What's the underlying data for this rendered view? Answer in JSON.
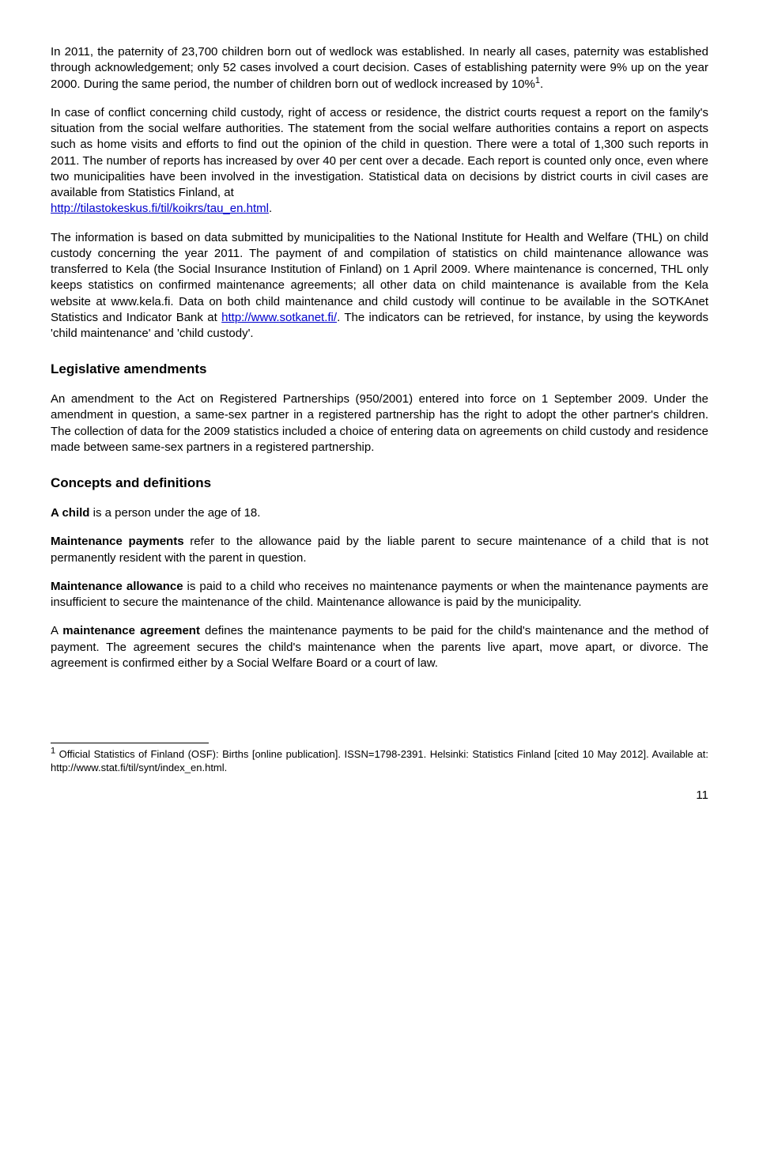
{
  "para1": "In 2011, the paternity of 23,700 children born out of wedlock was established. In nearly all cases, paternity was established through acknowledgement; only 52 cases involved a court decision. Cases of establishing paternity were 9% up on the year 2000. During the same period, the number of children born out of wedlock increased by 10%",
  "para1_sup": "1",
  "para1_end": ".",
  "para2_a": "In case of conflict concerning child custody, right of access or residence, the district courts request a report on the family's situation from the social welfare authorities. The statement from the social welfare authorities contains a report on aspects such as home visits and efforts to find out the opinion of the child in question. There were a total of 1,300 such reports in 2011. The number of reports has increased by over 40 per cent over a decade. Each report is counted only once, even where two municipalities have been involved in the investigation. Statistical data on decisions by district courts in civil cases are available from Statistics Finland, at",
  "para2_link": "http://tilastokeskus.fi/til/koikrs/tau_en.html",
  "para2_b": ".",
  "para3_a": "The information is based on data submitted by municipalities to the National Institute for Health and Welfare (THL) on child custody concerning the year 2011. The payment of and compilation of statistics on child maintenance allowance was transferred to Kela (the Social Insurance Institution of Finland) on 1 April 2009. Where maintenance is concerned, THL only keeps statistics on confirmed maintenance agreements; all other data on child maintenance is available from the Kela website at www.kela.fi. Data on both child maintenance and child custody will continue to be available in the SOTKAnet Statistics and Indicator Bank at ",
  "para3_link": "http://www.sotkanet.fi/",
  "para3_b": ". The indicators can be retrieved, for instance, by using the keywords 'child maintenance' and 'child custody'.",
  "h_leg": "Legislative amendments",
  "para4": "An amendment to the Act on Registered Partnerships (950/2001) entered into force on 1 September 2009. Under the amendment in question, a same-sex partner in a registered partnership has the right to adopt the other partner's children. The collection of data for the 2009 statistics included a choice of entering data on agreements on child custody and residence made between same-sex partners in a registered partnership.",
  "h_con": "Concepts and definitions",
  "def_child_term": "A child",
  "def_child_text": " is a person under the age of 18.",
  "def_mp_term": "Maintenance payments",
  "def_mp_text": " refer to the allowance paid by the liable parent to secure maintenance of a child that is not permanently resident with the parent in question.",
  "def_ma_term": "Maintenance allowance",
  "def_ma_text": " is paid to a child who receives no maintenance payments or when the maintenance payments are insufficient to secure the maintenance of the child. Maintenance allowance is paid by the municipality.",
  "def_mag_pre": "A ",
  "def_mag_term": "maintenance agreement",
  "def_mag_text": " defines the maintenance payments to be paid for the child's maintenance and the method of payment. The agreement secures the child's maintenance when the parents live apart, move apart, or divorce. The agreement is confirmed either by a Social Welfare Board or a court of law.",
  "footnote_sup": "1",
  "footnote_text": " Official Statistics of Finland (OSF): Births [online publication]. ISSN=1798-2391. Helsinki: Statistics Finland [cited 10 May 2012]. Available at: http://www.stat.fi/til/synt/index_en.html.",
  "page_number": "11",
  "link_color": "#0000cc"
}
